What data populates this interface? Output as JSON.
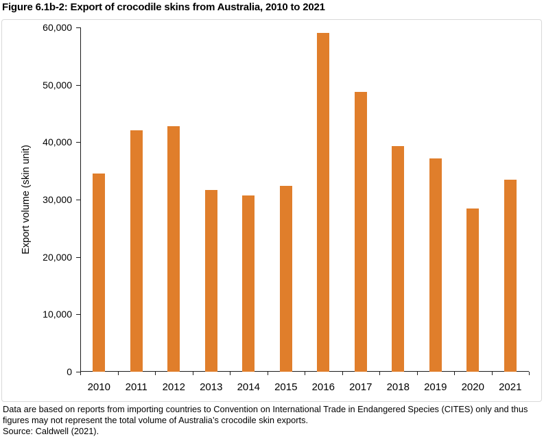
{
  "page": {
    "title": "Figure 6.1b-2: Export of crocodile skins from Australia, 2010 to 2021"
  },
  "chart_data": {
    "type": "bar",
    "title": "Figure 6.1b-2: Export of crocodile skins from Australia, 2010 to 2021",
    "categories": [
      "2010",
      "2011",
      "2012",
      "2013",
      "2014",
      "2015",
      "2016",
      "2017",
      "2018",
      "2019",
      "2020",
      "2021"
    ],
    "values": [
      34500,
      42100,
      42800,
      31700,
      30700,
      32400,
      59000,
      48800,
      39300,
      37200,
      28500,
      33500
    ],
    "xlabel": "",
    "ylabel": "Export volume (skin unit)",
    "ylim": [
      0,
      60000
    ],
    "y_ticks": [
      0,
      10000,
      20000,
      30000,
      40000,
      50000,
      60000
    ],
    "y_tick_labels": [
      "0",
      "10,000",
      "20,000",
      "30,000",
      "40,000",
      "50,000",
      "60,000"
    ],
    "grid": false,
    "legend": "none",
    "bar_color": "#E07E2B",
    "axis_color": "#1a1a1a"
  },
  "footnote": {
    "line1": "Data are based on reports from importing countries to Convention on International Trade in Endangered Species (CITES) only and thus",
    "line2": "figures may not represent the total volume of Australia’s crocodile skin exports.",
    "source": "Source: Caldwell (2021)."
  }
}
